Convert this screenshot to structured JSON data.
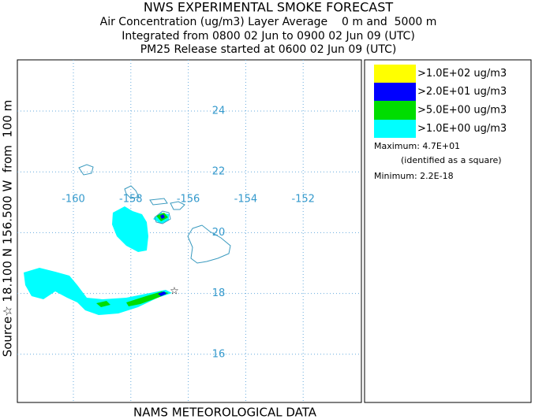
{
  "header": {
    "title": "NWS EXPERIMENTAL SMOKE FORECAST",
    "lines": [
      "Air Concentration (ug/m3) Layer Average    0 m and  5000 m",
      "Integrated from 0800 02 Jun to 0900 02 Jun 09 (UTC)",
      "PM25 Release started at 0600 02 Jun 09 (UTC)"
    ]
  },
  "map": {
    "latitudes": [
      24,
      22,
      20,
      18,
      16
    ],
    "longitudes": [
      -160,
      -158,
      -156,
      -154,
      -152
    ],
    "source_label": "Source☆ 18.100 N 156.500 W  from  100 m",
    "footer": "NAMS METEOROLOGICAL DATA"
  },
  "legend": {
    "entries": [
      {
        "label": ">1.0E+02 ug/m3",
        "color": "#ffff00"
      },
      {
        "label": ">2.0E+01 ug/m3",
        "color": "#0000ff"
      },
      {
        "label": ">5.0E+00 ug/m3",
        "color": "#00dd00"
      },
      {
        "label": ">1.0E+00 ug/m3",
        "color": "#00ffff"
      }
    ],
    "maximum": "Maximum: 4.7E+01",
    "maximum_note": "(identified as a square)",
    "minimum": "Minimum: 2.2E-18"
  }
}
